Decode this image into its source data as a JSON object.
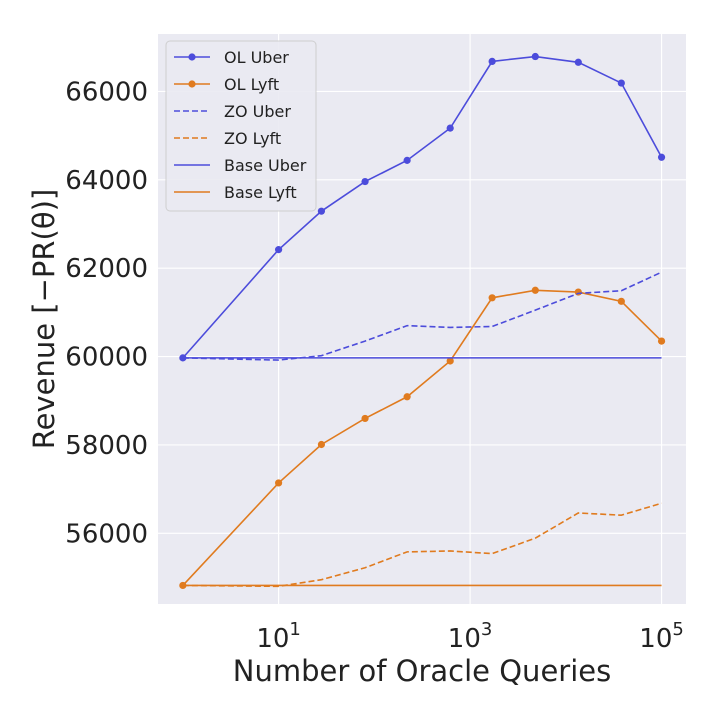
{
  "chart_data": {
    "type": "line",
    "xlabel": "Number of Oracle Queries",
    "ylabel": "Revenue [−PR(θ)]",
    "xscale": "log",
    "xlim": [
      0.55,
      180000
    ],
    "ylim": [
      54400,
      67300
    ],
    "x_ticks": [
      {
        "value": 10,
        "base": "10",
        "exp": "1"
      },
      {
        "value": 1000,
        "base": "10",
        "exp": "3"
      },
      {
        "value": 100000,
        "base": "10",
        "exp": "5"
      }
    ],
    "y_ticks": [
      {
        "value": 56000,
        "label": "56000"
      },
      {
        "value": 58000,
        "label": "58000"
      },
      {
        "value": 60000,
        "label": "60000"
      },
      {
        "value": 62000,
        "label": "62000"
      },
      {
        "value": 64000,
        "label": "64000"
      },
      {
        "value": 66000,
        "label": "66000"
      }
    ],
    "grid": true,
    "legend_position": "top-left",
    "series": [
      {
        "name": "OL Uber",
        "color": "#4c4cdb",
        "style": "solid",
        "marker": true,
        "x": [
          1,
          10,
          28,
          80,
          220,
          620,
          1700,
          4800,
          13500,
          38000,
          100000
        ],
        "y": [
          59970,
          62420,
          63290,
          63960,
          64440,
          65170,
          66680,
          66790,
          66660,
          66190,
          64510
        ]
      },
      {
        "name": "OL Lyft",
        "color": "#e07b1f",
        "style": "solid",
        "marker": true,
        "x": [
          1,
          10,
          28,
          80,
          220,
          620,
          1700,
          4800,
          13500,
          38000,
          100000
        ],
        "y": [
          54820,
          57140,
          58010,
          58600,
          59090,
          59900,
          61330,
          61500,
          61460,
          61250,
          60350
        ]
      },
      {
        "name": "ZO Uber",
        "color": "#4c4cdb",
        "style": "dashed",
        "marker": false,
        "x": [
          1,
          10,
          28,
          80,
          220,
          620,
          1700,
          4800,
          13500,
          38000,
          100000
        ],
        "y": [
          59970,
          59920,
          60020,
          60350,
          60700,
          60660,
          60680,
          61050,
          61430,
          61490,
          61910
        ]
      },
      {
        "name": "ZO Lyft",
        "color": "#e07b1f",
        "style": "dashed",
        "marker": false,
        "x": [
          1,
          10,
          28,
          80,
          220,
          620,
          1700,
          4800,
          13500,
          38000,
          100000
        ],
        "y": [
          54820,
          54800,
          54950,
          55220,
          55580,
          55600,
          55540,
          55890,
          56460,
          56410,
          56680
        ]
      },
      {
        "name": "Base Uber",
        "color": "#4c4cdb",
        "style": "solid",
        "marker": false,
        "x": [
          1,
          100000
        ],
        "y": [
          59970,
          59970
        ]
      },
      {
        "name": "Base Lyft",
        "color": "#e07b1f",
        "style": "solid",
        "marker": false,
        "x": [
          1,
          100000
        ],
        "y": [
          54820,
          54820
        ]
      }
    ]
  }
}
